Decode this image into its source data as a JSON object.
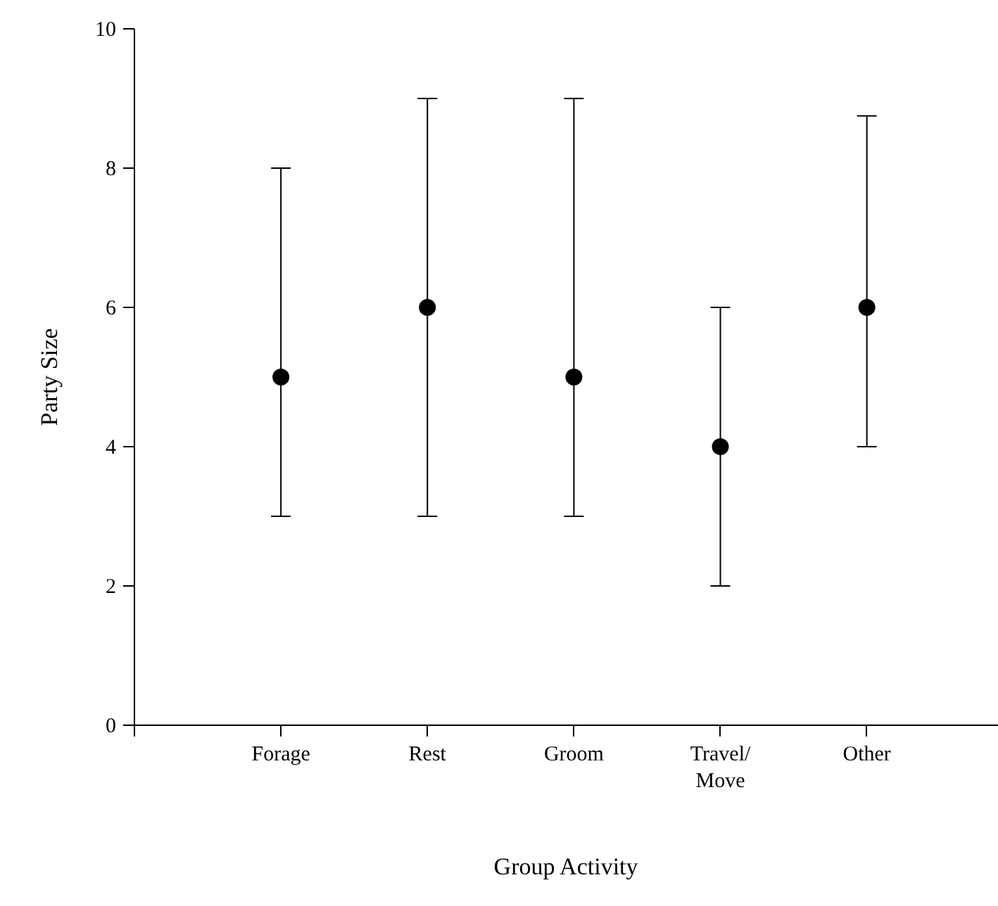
{
  "chart_data": {
    "type": "scatter",
    "xlabel": "Group Activity",
    "ylabel": "Party Size",
    "categories": [
      "Forage",
      "Rest",
      "Groom",
      "Travel/\nMove",
      "Other"
    ],
    "values": [
      5,
      6,
      5,
      4,
      6
    ],
    "errors": [
      [
        3,
        8
      ],
      [
        3,
        9
      ],
      [
        3,
        9
      ],
      [
        2,
        6
      ],
      [
        4,
        8.75
      ]
    ],
    "color": "#000000",
    "marker": "circle",
    "ylim": [
      0,
      10
    ],
    "yticks": [
      0,
      2,
      4,
      6,
      8,
      10
    ],
    "grid": false
  }
}
